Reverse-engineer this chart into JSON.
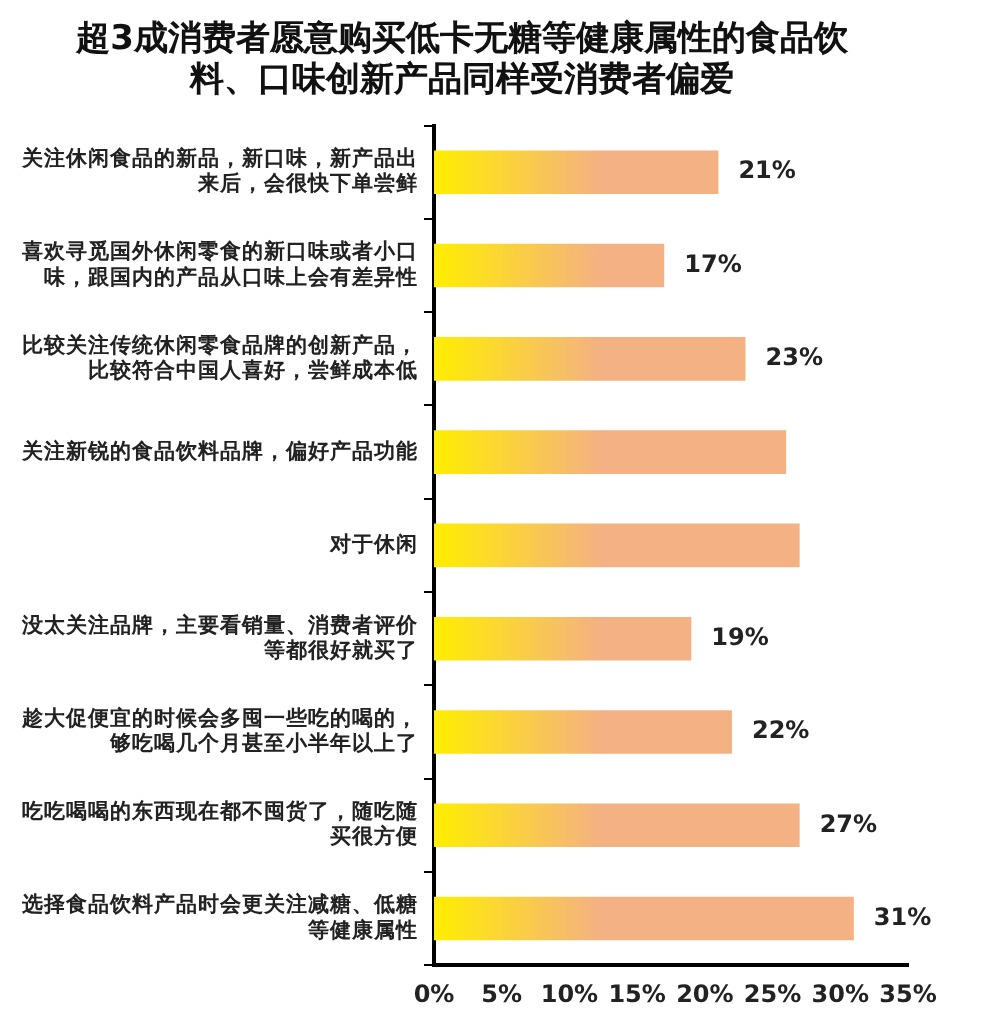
{
  "chart_data": {
    "type": "bar",
    "orientation": "horizontal",
    "title": "超3成消费者愿意购买低卡无糖等健康属性的食品饮料、口味创新产品同样受消费者偏爱",
    "categories": [
      "关注休闲食品的新品，新口味，新产品出来后，会很快下单尝鲜",
      "喜欢寻觅国外休闲零食的新口味或者小口味，跟国内的产品从口味上会有差异性",
      "比较关注传统休闲零食品牌的创新产品，比较符合中国人喜好，尝鲜成本低",
      "关注新锐的食品饮料品牌，偏好产品功能",
      "对于休闲",
      "没太关注品牌，主要看销量、消费者评价等都很好就买了",
      "趁大促便宜的时候会多囤一些吃的喝的，够吃喝几个月甚至小半年以上了",
      "吃吃喝喝的东西现在都不囤货了，随吃随买很方便",
      "选择食品饮料产品时会更关注减糖、低糖等健康属性"
    ],
    "values": [
      21,
      17,
      23,
      26,
      27,
      19,
      22,
      27,
      31
    ],
    "value_labels": [
      "21%",
      "17%",
      "23%",
      null,
      null,
      "19%",
      "22%",
      "27%",
      "31%"
    ],
    "color": "#f4b183",
    "xlim": [
      0,
      35
    ],
    "xticks": [
      {
        "value": 0,
        "label": "0%"
      },
      {
        "value": 5,
        "label": "5%"
      },
      {
        "value": 10,
        "label": "10%"
      },
      {
        "value": 15,
        "label": "15%"
      },
      {
        "value": 20,
        "label": "20%"
      },
      {
        "value": 25,
        "label": "25%"
      },
      {
        "value": 30,
        "label": "30%"
      },
      {
        "value": 35,
        "label": "35%"
      }
    ],
    "grid": false,
    "legend": false
  }
}
